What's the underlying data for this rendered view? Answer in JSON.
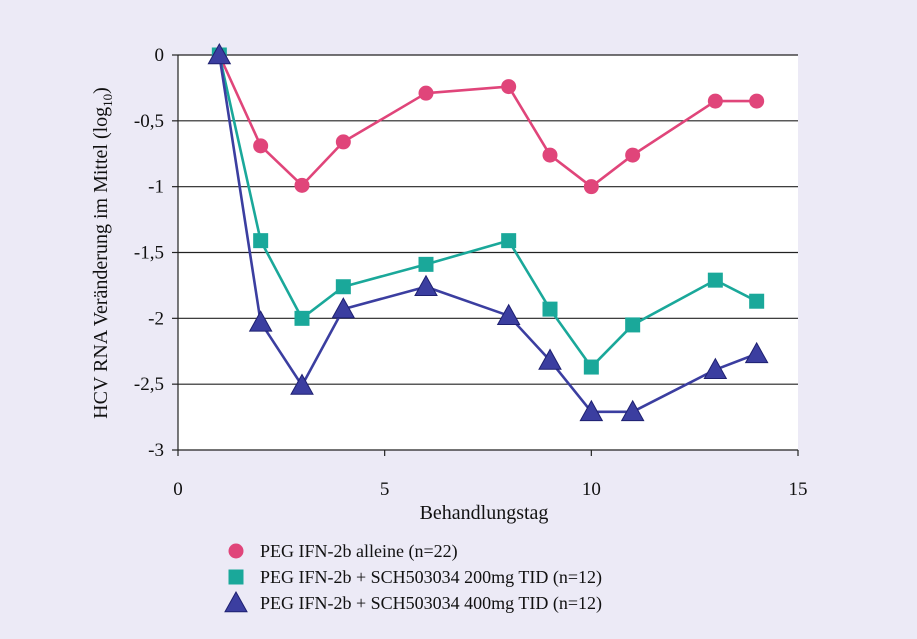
{
  "chart_data": {
    "type": "line",
    "xlabel": "Behandlungstag",
    "ylabel": "HCV RNA Veränderung im Mittel (log",
    "ylabel_sub": "10",
    "ylabel_close": ")",
    "xlim": [
      0,
      15
    ],
    "ylim": [
      -3,
      0
    ],
    "xticks": [
      0,
      5,
      10,
      15
    ],
    "xtick_labels": [
      "0",
      "5",
      "10",
      "15"
    ],
    "yticks": [
      0,
      -0.5,
      -1,
      -1.5,
      -2,
      -2.5,
      -3
    ],
    "ytick_labels": [
      "0",
      "-0,5",
      "-1",
      "-1,5",
      "-2",
      "-2,5",
      "-3"
    ],
    "grid": "horizontal",
    "legend_position": "bottom",
    "series": [
      {
        "name": "PEG IFN-2b alleine (n=22)",
        "marker": "circle",
        "color": "#e0457a",
        "x": [
          1,
          2,
          3,
          4,
          6,
          8,
          9,
          10,
          11,
          13,
          14
        ],
        "y": [
          0,
          -0.69,
          -0.99,
          -0.66,
          -0.29,
          -0.24,
          -0.76,
          -1.0,
          -0.76,
          -0.35,
          -0.35
        ]
      },
      {
        "name": "PEG IFN-2b + SCH503034 200mg TID (n=12)",
        "marker": "square",
        "color": "#1aa89a",
        "x": [
          1,
          2,
          3,
          4,
          6,
          8,
          9,
          10,
          11,
          13,
          14
        ],
        "y": [
          0,
          -1.41,
          -2.0,
          -1.76,
          -1.59,
          -1.41,
          -1.93,
          -2.37,
          -2.05,
          -1.71,
          -1.87
        ]
      },
      {
        "name": "PEG IFN-2b + SCH503034 400mg TID (n=12)",
        "marker": "triangle",
        "color": "#3b3ea0",
        "x": [
          1,
          2,
          3,
          4,
          6,
          8,
          9,
          10,
          11,
          13,
          14
        ],
        "y": [
          0,
          -2.03,
          -2.51,
          -1.93,
          -1.76,
          -1.98,
          -2.32,
          -2.71,
          -2.71,
          -2.39,
          -2.27
        ]
      }
    ]
  }
}
